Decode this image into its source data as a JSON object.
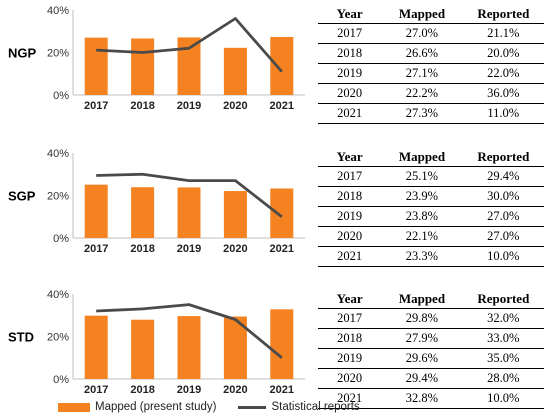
{
  "colors": {
    "bar": "#F58220",
    "line": "#4A4A4A",
    "axis": "#BFBFBF"
  },
  "legend": {
    "mapped": "Mapped (present study)",
    "reported": "Statistical reports"
  },
  "table_headers": {
    "year": "Year",
    "mapped": "Mapped",
    "reported": "Reported"
  },
  "chart_data": [
    {
      "type": "bar",
      "region": "NGP",
      "categories": [
        "2017",
        "2018",
        "2019",
        "2020",
        "2021"
      ],
      "ylim": [
        0,
        40
      ],
      "yticks": [
        "0%",
        "20%",
        "40%"
      ],
      "series": [
        {
          "name": "Mapped (present study)",
          "type": "bar",
          "values": [
            27.0,
            26.6,
            27.1,
            22.2,
            27.3
          ]
        },
        {
          "name": "Statistical reports",
          "type": "line",
          "values": [
            21.1,
            20.0,
            22.0,
            36.0,
            11.0
          ]
        }
      ],
      "table": [
        [
          "2017",
          "27.0%",
          "21.1%"
        ],
        [
          "2018",
          "26.6%",
          "20.0%"
        ],
        [
          "2019",
          "27.1%",
          "22.0%"
        ],
        [
          "2020",
          "22.2%",
          "36.0%"
        ],
        [
          "2021",
          "27.3%",
          "11.0%"
        ]
      ]
    },
    {
      "type": "bar",
      "region": "SGP",
      "categories": [
        "2017",
        "2018",
        "2019",
        "2020",
        "2021"
      ],
      "ylim": [
        0,
        40
      ],
      "yticks": [
        "0%",
        "20%",
        "40%"
      ],
      "series": [
        {
          "name": "Mapped (present study)",
          "type": "bar",
          "values": [
            25.1,
            23.9,
            23.8,
            22.1,
            23.3
          ]
        },
        {
          "name": "Statistical reports",
          "type": "line",
          "values": [
            29.4,
            30.0,
            27.0,
            27.0,
            10.0
          ]
        }
      ],
      "table": [
        [
          "2017",
          "25.1%",
          "29.4%"
        ],
        [
          "2018",
          "23.9%",
          "30.0%"
        ],
        [
          "2019",
          "23.8%",
          "27.0%"
        ],
        [
          "2020",
          "22.1%",
          "27.0%"
        ],
        [
          "2021",
          "23.3%",
          "10.0%"
        ]
      ]
    },
    {
      "type": "bar",
      "region": "STD",
      "categories": [
        "2017",
        "2018",
        "2019",
        "2020",
        "2021"
      ],
      "ylim": [
        0,
        40
      ],
      "yticks": [
        "0%",
        "20%",
        "40%"
      ],
      "series": [
        {
          "name": "Mapped (present study)",
          "type": "bar",
          "values": [
            29.8,
            27.9,
            29.6,
            29.4,
            32.8
          ]
        },
        {
          "name": "Statistical reports",
          "type": "line",
          "values": [
            32.0,
            33.0,
            35.0,
            28.0,
            10.0
          ]
        }
      ],
      "table": [
        [
          "2017",
          "29.8%",
          "32.0%"
        ],
        [
          "2018",
          "27.9%",
          "33.0%"
        ],
        [
          "2019",
          "29.6%",
          "35.0%"
        ],
        [
          "2020",
          "29.4%",
          "28.0%"
        ],
        [
          "2021",
          "32.8%",
          "10.0%"
        ]
      ]
    }
  ]
}
